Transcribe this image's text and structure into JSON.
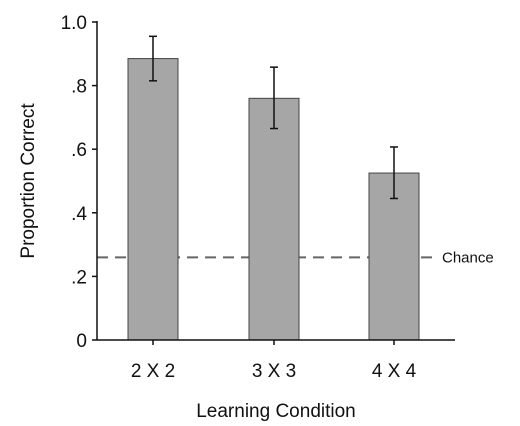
{
  "chart_data": {
    "type": "bar",
    "xlabel": "Learning Condition",
    "ylabel": "Proportion Correct",
    "categories": [
      "2 X 2",
      "3 X 3",
      "4 X 4"
    ],
    "values": [
      0.885,
      0.76,
      0.525
    ],
    "error_low": [
      0.815,
      0.665,
      0.445
    ],
    "error_high": [
      0.955,
      0.858,
      0.607
    ],
    "ylim": [
      0,
      1.0
    ],
    "yticks": [
      {
        "value": 0,
        "label": "0"
      },
      {
        "value": 0.2,
        "label": ".2"
      },
      {
        "value": 0.4,
        "label": ".4"
      },
      {
        "value": 0.6,
        "label": ".6"
      },
      {
        "value": 0.8,
        "label": ".8"
      },
      {
        "value": 1.0,
        "label": "1.0"
      }
    ],
    "reference_line": {
      "value": 0.26,
      "label": "Chance",
      "style": "dashed"
    },
    "grid": false,
    "colors": {
      "bar_fill": "#a6a6a6",
      "bar_stroke": "#444444",
      "axis": "#111111",
      "reference": "#666666"
    }
  }
}
